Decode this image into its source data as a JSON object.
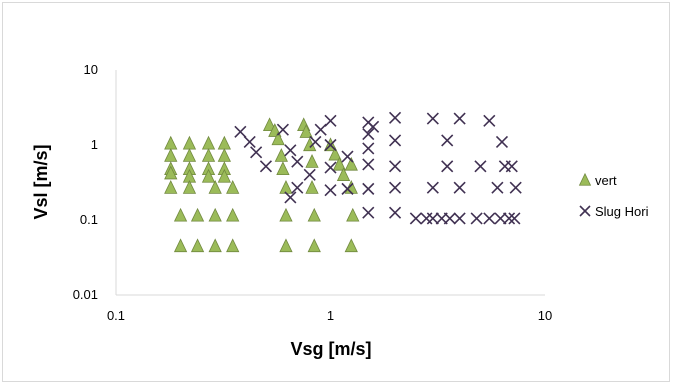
{
  "chart_data": {
    "type": "scatter",
    "title": "",
    "xlabel": "Vsg [m/s]",
    "ylabel": "Vsl [m/s]",
    "x_scale": "log",
    "y_scale": "log",
    "xlim": [
      0.1,
      10
    ],
    "ylim": [
      0.01,
      10
    ],
    "x_ticks": [
      "0.1",
      "1",
      "10"
    ],
    "y_ticks": [
      "0.01",
      "0.1",
      "1",
      "10"
    ],
    "grid": false,
    "legend_position": "right",
    "series": [
      {
        "name": "vert",
        "marker": "triangle",
        "color": "#9BBB59",
        "edge_color": "#71893F",
        "points": [
          [
            0.18,
            1.05
          ],
          [
            0.18,
            0.72
          ],
          [
            0.18,
            0.48
          ],
          [
            0.18,
            0.42
          ],
          [
            0.18,
            0.27
          ],
          [
            0.2,
            0.115
          ],
          [
            0.2,
            0.045
          ],
          [
            0.22,
            1.05
          ],
          [
            0.22,
            0.72
          ],
          [
            0.22,
            0.48
          ],
          [
            0.22,
            0.38
          ],
          [
            0.22,
            0.27
          ],
          [
            0.24,
            0.115
          ],
          [
            0.24,
            0.045
          ],
          [
            0.27,
            1.05
          ],
          [
            0.27,
            0.72
          ],
          [
            0.27,
            0.48
          ],
          [
            0.27,
            0.38
          ],
          [
            0.29,
            0.27
          ],
          [
            0.29,
            0.115
          ],
          [
            0.29,
            0.045
          ],
          [
            0.32,
            1.05
          ],
          [
            0.32,
            0.72
          ],
          [
            0.32,
            0.48
          ],
          [
            0.32,
            0.38
          ],
          [
            0.35,
            0.27
          ],
          [
            0.35,
            0.115
          ],
          [
            0.35,
            0.045
          ],
          [
            0.52,
            1.85
          ],
          [
            0.55,
            1.55
          ],
          [
            0.57,
            1.2
          ],
          [
            0.59,
            0.72
          ],
          [
            0.6,
            0.48
          ],
          [
            0.62,
            0.27
          ],
          [
            0.62,
            0.115
          ],
          [
            0.62,
            0.045
          ],
          [
            0.75,
            1.85
          ],
          [
            0.77,
            1.5
          ],
          [
            0.8,
            1.0
          ],
          [
            0.82,
            0.6
          ],
          [
            0.82,
            0.27
          ],
          [
            0.84,
            0.115
          ],
          [
            0.84,
            0.045
          ],
          [
            1.0,
            1.0
          ],
          [
            1.05,
            0.75
          ],
          [
            1.1,
            0.55
          ],
          [
            1.15,
            0.4
          ],
          [
            1.25,
            0.55
          ],
          [
            1.25,
            0.27
          ],
          [
            1.27,
            0.115
          ],
          [
            1.25,
            0.045
          ]
        ]
      },
      {
        "name": "Slug Hori",
        "marker": "x",
        "color": "#403152",
        "points": [
          [
            0.38,
            1.5
          ],
          [
            0.42,
            1.1
          ],
          [
            0.45,
            0.8
          ],
          [
            0.5,
            0.52
          ],
          [
            0.6,
            1.6
          ],
          [
            0.65,
            0.85
          ],
          [
            0.7,
            0.6
          ],
          [
            0.65,
            0.2
          ],
          [
            0.7,
            0.27
          ],
          [
            0.8,
            0.4
          ],
          [
            0.85,
            1.1
          ],
          [
            0.9,
            1.6
          ],
          [
            1.0,
            2.1
          ],
          [
            1.0,
            1.0
          ],
          [
            1.0,
            0.5
          ],
          [
            1.0,
            0.25
          ],
          [
            1.2,
            0.26
          ],
          [
            1.2,
            0.7
          ],
          [
            1.5,
            2.0
          ],
          [
            1.5,
            1.4
          ],
          [
            1.5,
            0.9
          ],
          [
            1.5,
            0.55
          ],
          [
            1.5,
            0.26
          ],
          [
            1.5,
            0.125
          ],
          [
            1.58,
            1.75
          ],
          [
            2.0,
            2.3
          ],
          [
            2.0,
            1.15
          ],
          [
            2.0,
            0.52
          ],
          [
            2.0,
            0.27
          ],
          [
            2.0,
            0.125
          ],
          [
            2.5,
            0.105
          ],
          [
            2.8,
            0.105
          ],
          [
            3.0,
            0.105
          ],
          [
            3.3,
            0.105
          ],
          [
            3.6,
            0.105
          ],
          [
            4.0,
            0.105
          ],
          [
            3.0,
            2.25
          ],
          [
            3.0,
            0.27
          ],
          [
            3.5,
            1.15
          ],
          [
            3.5,
            0.52
          ],
          [
            4.0,
            2.25
          ],
          [
            4.0,
            0.27
          ],
          [
            4.8,
            0.105
          ],
          [
            5.5,
            0.105
          ],
          [
            6.2,
            0.105
          ],
          [
            6.8,
            0.105
          ],
          [
            7.2,
            0.105
          ],
          [
            5.0,
            0.52
          ],
          [
            5.5,
            2.1
          ],
          [
            6.0,
            0.27
          ],
          [
            6.3,
            1.1
          ],
          [
            6.5,
            0.52
          ],
          [
            7.0,
            0.52
          ],
          [
            7.3,
            0.27
          ]
        ]
      }
    ]
  }
}
